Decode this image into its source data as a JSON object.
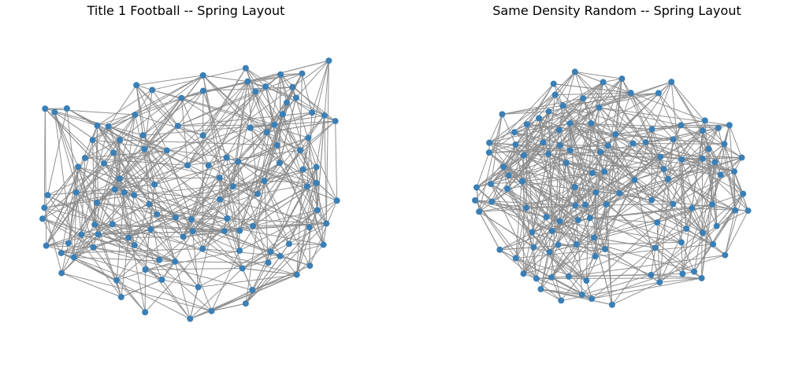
{
  "panels": [
    {
      "title": "Title 1 Football -- Spring Layout",
      "node_color": "#3a7fb6",
      "edge_color": "#8c8c8c",
      "seed": 11,
      "node_count": 115
    },
    {
      "title": "Same Density Random -- Spring Layout",
      "node_color": "#3a7fb6",
      "edge_color": "#8c8c8c",
      "seed": 29,
      "node_count": 115
    }
  ]
}
